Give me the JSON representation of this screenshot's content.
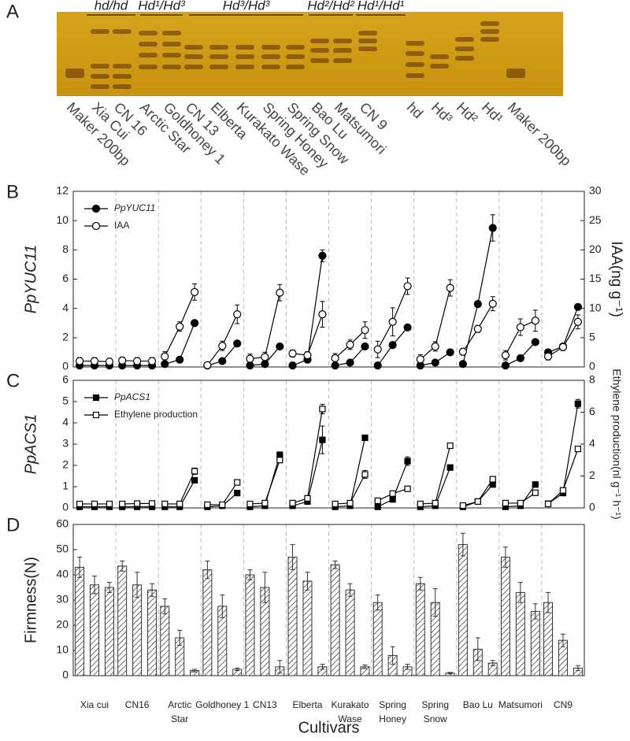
{
  "chart_data": [
    {
      "type": "gel",
      "label": "A",
      "genotypes": [
        "hd/hd",
        "Hd¹/Hd³",
        "Hd³/Hd³",
        "Hd²/Hd²",
        "Hd¹/Hd¹"
      ],
      "lanes": [
        "Maker 200bp",
        "Xia Cui",
        "CN 16",
        "Arctic Star",
        "Goldhoney 1",
        "CN 13",
        "Elberta",
        "Kurakato Wase",
        "Spring Honey",
        "Spring Snow",
        "Bao Lu",
        "Matsumori",
        "CN 9",
        "hd",
        "Hd³",
        "Hd²",
        "Hd¹",
        "Maker 200bp"
      ]
    },
    {
      "type": "line",
      "label": "B",
      "ylabel": "PpYUC11",
      "ylabel_style": "italic",
      "y2label": "IAA(ng g⁻¹)",
      "ylim": [
        0,
        12
      ],
      "yticks": [
        0,
        2,
        4,
        6,
        8,
        10,
        12
      ],
      "y2lim": [
        0,
        30
      ],
      "y2ticks": [
        0,
        5,
        10,
        15,
        20,
        25,
        30
      ],
      "legend": "upper left",
      "series": [
        {
          "name": "PpYUC11",
          "style": "italic",
          "marker": "circle",
          "fill": "filled",
          "color": "#000",
          "values": [
            [
              0.1,
              0.1,
              0.1
            ],
            [
              0.1,
              0.1,
              0.1
            ],
            [
              0.2,
              0.5,
              3.0
            ],
            [
              0.1,
              0.4,
              1.6
            ],
            [
              0.1,
              0.2,
              1.4
            ],
            [
              0.1,
              0.5,
              7.6
            ],
            [
              0.1,
              0.3,
              1.4
            ],
            [
              0.1,
              1.5,
              2.7
            ],
            [
              0.1,
              0.3,
              1.0
            ],
            [
              0.2,
              4.3,
              9.5
            ],
            [
              0.1,
              0.6,
              1.7
            ],
            [
              1.0,
              1.4,
              4.1
            ]
          ],
          "errors": [
            [
              0.05,
              0.05,
              0.05
            ],
            [
              0.05,
              0.05,
              0.05
            ],
            [
              0.05,
              0.1,
              0.2
            ],
            [
              0.05,
              0.1,
              0.1
            ],
            [
              0.05,
              0.05,
              0.1
            ],
            [
              0.05,
              0.1,
              0.4
            ],
            [
              0.05,
              0.05,
              0.1
            ],
            [
              0.05,
              0.1,
              0.15
            ],
            [
              0.05,
              0.05,
              0.1
            ],
            [
              0.05,
              0.15,
              0.9
            ],
            [
              0.05,
              0.1,
              0.1
            ],
            [
              0.1,
              0.1,
              0.2
            ]
          ]
        },
        {
          "name": "IAA",
          "axis": "y2",
          "marker": "circle",
          "fill": "open",
          "color": "#000",
          "values": [
            [
              1.0,
              1.0,
              0.9
            ],
            [
              1.1,
              1.0,
              1.0
            ],
            [
              1.8,
              6.9,
              12.8
            ],
            [
              0.3,
              3.6,
              9.0
            ],
            [
              1.4,
              1.7,
              12.7
            ],
            [
              2.3,
              2.0,
              9.0
            ],
            [
              1.5,
              3.8,
              6.3
            ],
            [
              3.0,
              7.7,
              13.8
            ],
            [
              1.3,
              3.5,
              13.5
            ],
            [
              2.6,
              6.5,
              10.8
            ],
            [
              2.0,
              6.8,
              7.9
            ],
            [
              1.8,
              3.4,
              7.7
            ]
          ],
          "errors": [
            [
              0.6,
              0.6,
              0.6
            ],
            [
              0.6,
              0.6,
              0.6
            ],
            [
              0.8,
              0.8,
              1.4
            ],
            [
              0.3,
              0.8,
              1.6
            ],
            [
              0.8,
              0.8,
              1.4
            ],
            [
              0.6,
              0.6,
              2.2
            ],
            [
              0.8,
              0.8,
              1.4
            ],
            [
              1.4,
              2.4,
              1.4
            ],
            [
              0.8,
              0.8,
              1.4
            ],
            [
              0.6,
              0.6,
              1.2
            ],
            [
              0.8,
              1.4,
              1.8
            ],
            [
              0.6,
              0.6,
              1.2
            ]
          ]
        }
      ]
    },
    {
      "type": "line",
      "label": "C",
      "ylabel": "PpACS1",
      "ylabel_style": "italic",
      "y2label": "Ethylene production(nl g⁻¹ h⁻¹)",
      "ylim": [
        0,
        6
      ],
      "yticks": [
        0,
        1,
        2,
        3,
        4,
        5,
        6
      ],
      "y2lim": [
        0,
        8
      ],
      "y2ticks": [
        0,
        2,
        4,
        6,
        8
      ],
      "legend": "upper left",
      "series": [
        {
          "name": "PpACS1",
          "style": "italic",
          "marker": "square",
          "fill": "filled",
          "color": "#000",
          "values": [
            [
              0.05,
              0.05,
              0.05
            ],
            [
              0.05,
              0.05,
              0.05
            ],
            [
              0.05,
              0.05,
              1.3
            ],
            [
              0.05,
              0.1,
              0.7
            ],
            [
              0.05,
              0.1,
              2.5
            ],
            [
              0.1,
              0.3,
              3.2
            ],
            [
              0.05,
              0.1,
              3.3
            ],
            [
              0.05,
              0.4,
              2.2
            ],
            [
              0.05,
              0.1,
              1.9
            ],
            [
              0.05,
              0.3,
              1.1
            ],
            [
              0.05,
              0.1,
              1.1
            ],
            [
              0.2,
              0.7,
              4.9
            ]
          ],
          "errors": [
            [
              0.02,
              0.02,
              0.02
            ],
            [
              0.02,
              0.02,
              0.02
            ],
            [
              0.02,
              0.02,
              0.1
            ],
            [
              0.02,
              0.02,
              0.05
            ],
            [
              0.02,
              0.02,
              0.08
            ],
            [
              0.02,
              0.05,
              0.65
            ],
            [
              0.02,
              0.02,
              0.08
            ],
            [
              0.02,
              0.05,
              0.2
            ],
            [
              0.02,
              0.02,
              0.05
            ],
            [
              0.02,
              0.05,
              0.1
            ],
            [
              0.02,
              0.02,
              0.05
            ],
            [
              0.05,
              0.05,
              0.2
            ]
          ]
        },
        {
          "name": "Ethylene production",
          "axis": "y2",
          "marker": "square",
          "fill": "open",
          "color": "#000",
          "values": [
            [
              0.25,
              0.25,
              0.25
            ],
            [
              0.25,
              0.27,
              0.28
            ],
            [
              0.25,
              0.25,
              2.3
            ],
            [
              0.2,
              0.2,
              1.6
            ],
            [
              0.25,
              0.3,
              3.0
            ],
            [
              0.3,
              0.6,
              6.2
            ],
            [
              0.25,
              0.3,
              2.1
            ],
            [
              0.45,
              0.9,
              1.2
            ],
            [
              0.25,
              0.3,
              3.9
            ],
            [
              0.15,
              0.4,
              1.8
            ],
            [
              0.3,
              0.3,
              0.95
            ],
            [
              0.25,
              1.1,
              3.7
            ]
          ],
          "errors": [
            [
              0.05,
              0.05,
              0.05
            ],
            [
              0.05,
              0.05,
              0.05
            ],
            [
              0.05,
              0.05,
              0.2
            ],
            [
              0.05,
              0.05,
              0.1
            ],
            [
              0.05,
              0.1,
              0.15
            ],
            [
              0.1,
              0.1,
              0.3
            ],
            [
              0.05,
              0.05,
              0.25
            ],
            [
              0.1,
              0.1,
              0.1
            ],
            [
              0.05,
              0.05,
              0.15
            ],
            [
              0.05,
              0.1,
              0.15
            ],
            [
              0.05,
              0.05,
              0.1
            ],
            [
              0.05,
              0.1,
              0.15
            ]
          ]
        }
      ]
    },
    {
      "type": "bar",
      "label": "D",
      "ylabel": "Firmness(N)",
      "xlabel": "Cultivars",
      "categories": [
        [
          "Xia cui"
        ],
        [
          "CN16"
        ],
        [
          "Arctic",
          "Star"
        ],
        [
          "Goldhoney 1"
        ],
        [
          "CN13"
        ],
        [
          "Elberta"
        ],
        [
          "Kurakato",
          "Wase"
        ],
        [
          "Spring",
          "Honey"
        ],
        [
          "Spring",
          "Snow"
        ],
        [
          "Bao Lu"
        ],
        [
          "Matsumori"
        ],
        [
          "CN9"
        ]
      ],
      "ylim": [
        0,
        60
      ],
      "yticks": [
        0,
        10,
        20,
        30,
        40,
        50,
        60
      ],
      "series": [
        {
          "color": "#ffffff",
          "hatch": true,
          "values": [
            [
              43,
              36,
              35
            ],
            [
              43.5,
              36,
              34
            ],
            [
              27.5,
              15,
              2
            ],
            [
              42,
              27.5,
              2.5
            ],
            [
              40,
              35,
              3.5
            ],
            [
              47,
              37.5,
              3.5
            ],
            [
              44,
              34,
              3.5
            ],
            [
              29,
              8,
              3.5
            ],
            [
              36.5,
              29,
              1
            ],
            [
              52,
              10.5,
              5
            ],
            [
              47,
              33,
              25.5
            ],
            [
              29,
              14,
              3
            ]
          ],
          "errors": [
            [
              4,
              3.5,
              2
            ],
            [
              2,
              5,
              2.5
            ],
            [
              3,
              3,
              0.5
            ],
            [
              3.5,
              4.5,
              0.5
            ],
            [
              2,
              6,
              2.5
            ],
            [
              5,
              3.5,
              1
            ],
            [
              1.5,
              2.5,
              0.7
            ],
            [
              3,
              3.5,
              1
            ],
            [
              2.5,
              5.5,
              0.3
            ],
            [
              4.5,
              4.5,
              1
            ],
            [
              4,
              4,
              3
            ],
            [
              4,
              2.5,
              1
            ]
          ]
        }
      ]
    }
  ]
}
